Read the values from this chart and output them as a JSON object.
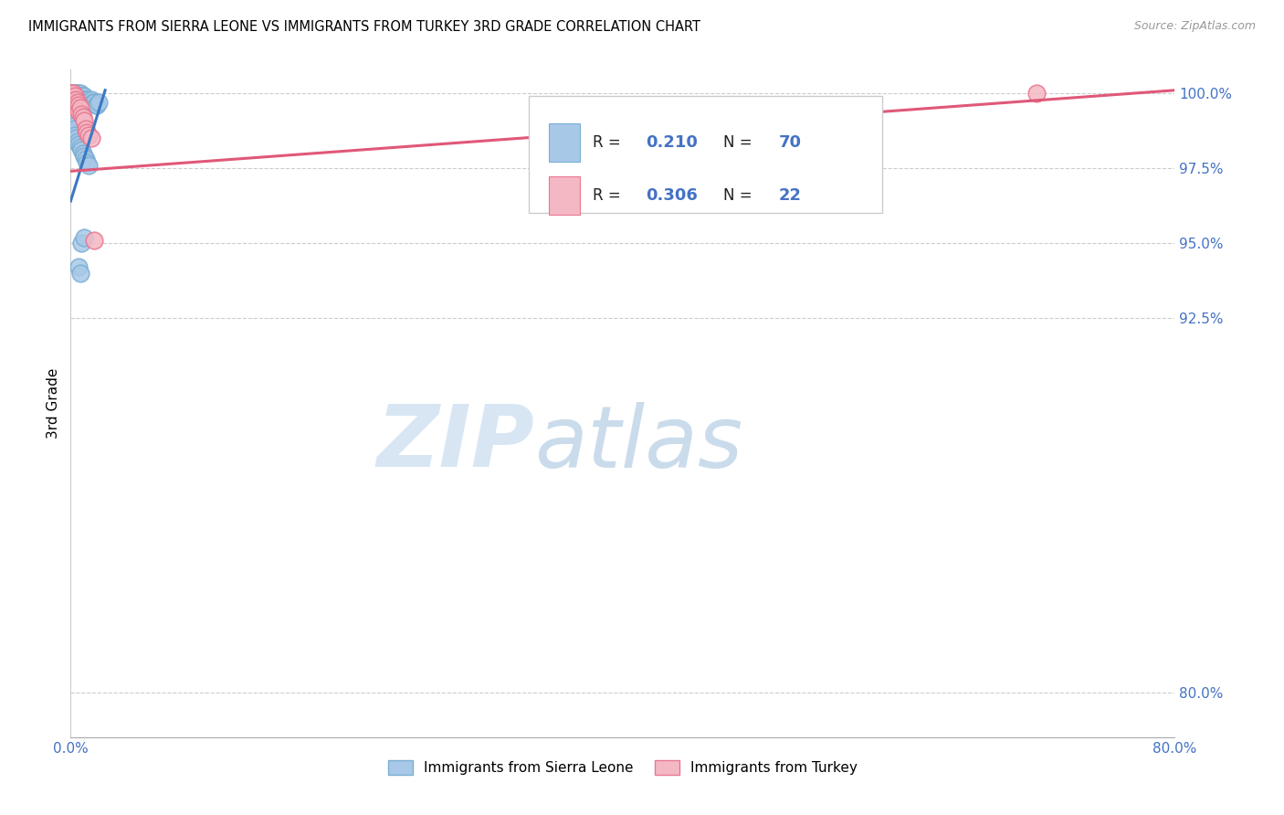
{
  "title": "IMMIGRANTS FROM SIERRA LEONE VS IMMIGRANTS FROM TURKEY 3RD GRADE CORRELATION CHART",
  "source": "Source: ZipAtlas.com",
  "ylabel": "3rd Grade",
  "xlim": [
    0.0,
    0.8
  ],
  "ylim": [
    0.785,
    1.008
  ],
  "ytick_values": [
    0.8,
    0.925,
    0.95,
    0.975,
    1.0
  ],
  "ytick_labels": [
    "80.0%",
    "92.5%",
    "95.0%",
    "97.5%",
    "100.0%"
  ],
  "xtick_values": [
    0.0,
    0.1,
    0.2,
    0.3,
    0.4,
    0.5,
    0.6,
    0.7,
    0.8
  ],
  "xtick_labels": [
    "0.0%",
    "",
    "",
    "",
    "",
    "",
    "",
    "",
    "80.0%"
  ],
  "blue_color": "#A8C8E8",
  "blue_edge_color": "#7BAFD4",
  "pink_color": "#F4B8C4",
  "pink_edge_color": "#E87890",
  "blue_line_color": "#3A78C3",
  "pink_line_color": "#E05878",
  "r_blue": "0.210",
  "n_blue": "70",
  "r_pink": "0.306",
  "n_pink": "22",
  "legend_label_blue": "Immigrants from Sierra Leone",
  "legend_label_pink": "Immigrants from Turkey",
  "watermark_zip": "ZIP",
  "watermark_atlas": "atlas",
  "blue_x": [
    0.001,
    0.001,
    0.001,
    0.001,
    0.001,
    0.002,
    0.002,
    0.002,
    0.002,
    0.002,
    0.003,
    0.003,
    0.003,
    0.003,
    0.004,
    0.004,
    0.004,
    0.004,
    0.005,
    0.005,
    0.005,
    0.005,
    0.006,
    0.006,
    0.006,
    0.006,
    0.007,
    0.007,
    0.007,
    0.008,
    0.008,
    0.008,
    0.009,
    0.009,
    0.009,
    0.01,
    0.01,
    0.01,
    0.011,
    0.011,
    0.012,
    0.012,
    0.013,
    0.014,
    0.015,
    0.016,
    0.017,
    0.018,
    0.019,
    0.02,
    0.001,
    0.001,
    0.002,
    0.002,
    0.003,
    0.003,
    0.004,
    0.005,
    0.006,
    0.007,
    0.008,
    0.009,
    0.01,
    0.011,
    0.012,
    0.013,
    0.008,
    0.01,
    0.006,
    0.007
  ],
  "blue_y": [
    1.0,
    1.0,
    0.999,
    0.999,
    0.998,
    1.0,
    1.0,
    0.999,
    0.998,
    0.997,
    1.0,
    0.999,
    0.998,
    0.997,
    1.0,
    0.999,
    0.998,
    0.997,
    1.0,
    0.999,
    0.998,
    0.997,
    1.0,
    0.999,
    0.998,
    0.997,
    1.0,
    0.999,
    0.997,
    0.999,
    0.998,
    0.997,
    0.999,
    0.998,
    0.997,
    0.999,
    0.998,
    0.997,
    0.998,
    0.996,
    0.998,
    0.997,
    0.997,
    0.997,
    0.998,
    0.997,
    0.997,
    0.996,
    0.996,
    0.997,
    0.99,
    0.988,
    0.989,
    0.987,
    0.988,
    0.986,
    0.985,
    0.984,
    0.983,
    0.982,
    0.981,
    0.98,
    0.979,
    0.978,
    0.977,
    0.976,
    0.95,
    0.952,
    0.942,
    0.94
  ],
  "pink_x": [
    0.001,
    0.001,
    0.002,
    0.002,
    0.003,
    0.003,
    0.004,
    0.004,
    0.005,
    0.005,
    0.006,
    0.006,
    0.007,
    0.008,
    0.009,
    0.01,
    0.011,
    0.012,
    0.013,
    0.015,
    0.017,
    0.7
  ],
  "pink_y": [
    1.0,
    0.999,
    1.0,
    0.998,
    0.999,
    0.997,
    0.998,
    0.996,
    0.997,
    0.995,
    0.996,
    0.994,
    0.995,
    0.993,
    0.992,
    0.991,
    0.988,
    0.987,
    0.986,
    0.985,
    0.951,
    1.0
  ],
  "blue_line_x0": 0.0,
  "blue_line_x1": 0.025,
  "blue_line_y0": 0.964,
  "blue_line_y1": 1.001,
  "pink_line_x0": 0.0,
  "pink_line_x1": 0.8,
  "pink_line_y0": 0.974,
  "pink_line_y1": 1.001
}
